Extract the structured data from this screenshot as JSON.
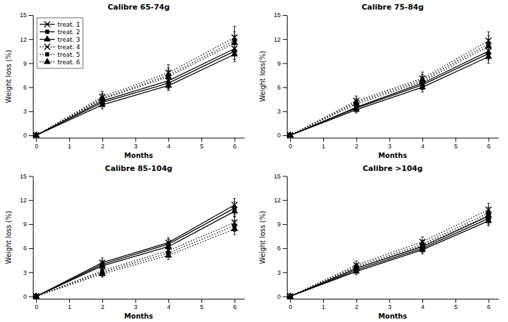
{
  "chart_data": [
    {
      "type": "line",
      "title": "Calibre 65-74g",
      "xlabel": "Months",
      "ylabel": "Weight loss (%)",
      "xlim": [
        -0.1,
        6.3
      ],
      "ylim": [
        -0.3,
        15.0
      ],
      "xticks": [
        0,
        1,
        2,
        3,
        4,
        5,
        6
      ],
      "yticks": [
        0,
        3,
        6,
        9,
        12,
        15
      ],
      "color": "#000000",
      "grid": false,
      "legend": "upper left",
      "series": [
        {
          "name": "treat. 1",
          "line_style": "solid",
          "marker": "x",
          "x": [
            0,
            2,
            4,
            6
          ],
          "values": [
            0,
            4.3,
            6.8,
            10.8
          ],
          "errors": [
            0,
            0.6,
            0.9,
            1.3
          ]
        },
        {
          "name": "treat. 2",
          "line_style": "solid",
          "marker": "square",
          "x": [
            0,
            2,
            4,
            6
          ],
          "values": [
            0,
            4.1,
            6.5,
            10.5
          ],
          "errors": [
            0,
            0.5,
            0.7,
            1.0
          ]
        },
        {
          "name": "treat. 3",
          "line_style": "solid",
          "marker": "triangle",
          "x": [
            0,
            2,
            4,
            6
          ],
          "values": [
            0,
            3.8,
            6.2,
            10.1
          ],
          "errors": [
            0,
            0.5,
            0.6,
            0.9
          ]
        },
        {
          "name": "treat. 4",
          "line_style": "dotted",
          "marker": "x",
          "x": [
            0,
            2,
            4,
            6
          ],
          "values": [
            0,
            4.8,
            7.8,
            12.2
          ],
          "errors": [
            0,
            0.7,
            1.0,
            1.4
          ]
        },
        {
          "name": "treat. 5",
          "line_style": "dotted",
          "marker": "square",
          "x": [
            0,
            2,
            4,
            6
          ],
          "values": [
            0,
            4.6,
            7.5,
            11.8
          ],
          "errors": [
            0,
            0.6,
            0.9,
            1.1
          ]
        },
        {
          "name": "treat. 6",
          "line_style": "dotted",
          "marker": "triangle",
          "x": [
            0,
            2,
            4,
            6
          ],
          "values": [
            0,
            4.5,
            7.3,
            11.5
          ],
          "errors": [
            0,
            0.6,
            0.8,
            1.0
          ]
        }
      ]
    },
    {
      "type": "line",
      "title": "Calibre 75-84g",
      "xlabel": "Months",
      "ylabel": "Weight loss(%)",
      "xlim": [
        -0.1,
        6.3
      ],
      "ylim": [
        -0.3,
        15.0
      ],
      "xticks": [
        0,
        1,
        2,
        3,
        4,
        5,
        6
      ],
      "yticks": [
        0,
        3,
        6,
        9,
        12,
        15
      ],
      "color": "#000000",
      "grid": false,
      "series": [
        {
          "name": "treat. 1",
          "line_style": "solid",
          "marker": "x",
          "x": [
            0,
            2,
            4,
            6
          ],
          "values": [
            0,
            3.5,
            6.5,
            10.5
          ],
          "errors": [
            0,
            0.4,
            0.7,
            0.9
          ]
        },
        {
          "name": "treat. 2",
          "line_style": "solid",
          "marker": "square",
          "x": [
            0,
            2,
            4,
            6
          ],
          "values": [
            0,
            3.4,
            6.3,
            10.2
          ],
          "errors": [
            0,
            0.4,
            0.6,
            0.8
          ]
        },
        {
          "name": "treat. 3",
          "line_style": "solid",
          "marker": "triangle",
          "x": [
            0,
            2,
            4,
            6
          ],
          "values": [
            0,
            3.2,
            6.0,
            9.8
          ],
          "errors": [
            0,
            0.4,
            0.6,
            0.8
          ]
        },
        {
          "name": "treat. 4",
          "line_style": "dotted",
          "marker": "x",
          "x": [
            0,
            2,
            4,
            6
          ],
          "values": [
            0,
            4.3,
            7.1,
            11.8
          ],
          "errors": [
            0,
            0.6,
            0.8,
            1.1
          ]
        },
        {
          "name": "treat. 5",
          "line_style": "dotted",
          "marker": "square",
          "x": [
            0,
            2,
            4,
            6
          ],
          "values": [
            0,
            4.1,
            6.9,
            11.4
          ],
          "errors": [
            0,
            0.5,
            0.7,
            1.0
          ]
        },
        {
          "name": "treat. 6",
          "line_style": "dotted",
          "marker": "triangle",
          "x": [
            0,
            2,
            4,
            6
          ],
          "values": [
            0,
            3.9,
            6.7,
            11.1
          ],
          "errors": [
            0,
            0.5,
            0.7,
            0.9
          ]
        }
      ]
    },
    {
      "type": "line",
      "title": "Calibre 85-104g",
      "xlabel": "Months",
      "ylabel": "Weight loss (%)",
      "xlim": [
        -0.1,
        6.3
      ],
      "ylim": [
        -0.3,
        15.0
      ],
      "xticks": [
        0,
        1,
        2,
        3,
        4,
        5,
        6
      ],
      "yticks": [
        0,
        3,
        6,
        9,
        12,
        15
      ],
      "color": "#000000",
      "grid": false,
      "series": [
        {
          "name": "treat. 1",
          "line_style": "solid",
          "marker": "x",
          "x": [
            0,
            2,
            4,
            6
          ],
          "values": [
            0,
            4.2,
            6.7,
            11.4
          ],
          "errors": [
            0,
            0.6,
            0.6,
            0.8
          ]
        },
        {
          "name": "treat. 2",
          "line_style": "solid",
          "marker": "square",
          "x": [
            0,
            2,
            4,
            6
          ],
          "values": [
            0,
            4.0,
            6.5,
            11.0
          ],
          "errors": [
            0,
            0.5,
            0.6,
            0.8
          ]
        },
        {
          "name": "treat. 3",
          "line_style": "solid",
          "marker": "triangle",
          "x": [
            0,
            2,
            4,
            6
          ],
          "values": [
            0,
            3.8,
            6.2,
            10.6
          ],
          "errors": [
            0,
            0.5,
            0.5,
            0.7
          ]
        },
        {
          "name": "treat. 4",
          "line_style": "dotted",
          "marker": "x",
          "x": [
            0,
            2,
            4,
            6
          ],
          "values": [
            0,
            3.2,
            5.7,
            9.2
          ],
          "errors": [
            0,
            0.5,
            0.6,
            0.8
          ]
        },
        {
          "name": "treat. 5",
          "line_style": "dotted",
          "marker": "square",
          "x": [
            0,
            2,
            4,
            6
          ],
          "values": [
            0,
            3.0,
            5.4,
            8.8
          ],
          "errors": [
            0,
            0.4,
            0.5,
            0.7
          ]
        },
        {
          "name": "treat. 6",
          "line_style": "dotted",
          "marker": "triangle",
          "x": [
            0,
            2,
            4,
            6
          ],
          "values": [
            0,
            2.8,
            5.1,
            8.4
          ],
          "errors": [
            0,
            0.4,
            0.5,
            0.7
          ]
        }
      ]
    },
    {
      "type": "line",
      "title": "Calibre >104g",
      "xlabel": "Months",
      "ylabel": "Weight loss (%)",
      "xlim": [
        -0.1,
        6.3
      ],
      "ylim": [
        -0.3,
        15.0
      ],
      "xticks": [
        0,
        1,
        2,
        3,
        4,
        5,
        6
      ],
      "yticks": [
        0,
        3,
        6,
        9,
        12,
        15
      ],
      "color": "#000000",
      "grid": false,
      "series": [
        {
          "name": "treat. 1",
          "line_style": "solid",
          "marker": "x",
          "x": [
            0,
            2,
            4,
            6
          ],
          "values": [
            0,
            3.5,
            6.2,
            10.0
          ],
          "errors": [
            0,
            0.4,
            0.5,
            0.7
          ]
        },
        {
          "name": "treat. 2",
          "line_style": "solid",
          "marker": "square",
          "x": [
            0,
            2,
            4,
            6
          ],
          "values": [
            0,
            3.3,
            6.0,
            9.7
          ],
          "errors": [
            0,
            0.4,
            0.5,
            0.7
          ]
        },
        {
          "name": "treat. 3",
          "line_style": "solid",
          "marker": "triangle",
          "x": [
            0,
            2,
            4,
            6
          ],
          "values": [
            0,
            3.1,
            5.8,
            9.4
          ],
          "errors": [
            0,
            0.4,
            0.5,
            0.6
          ]
        },
        {
          "name": "treat. 4",
          "line_style": "dotted",
          "marker": "x",
          "x": [
            0,
            2,
            4,
            6
          ],
          "values": [
            0,
            3.9,
            6.8,
            10.8
          ],
          "errors": [
            0,
            0.5,
            0.6,
            0.8
          ]
        },
        {
          "name": "treat. 5",
          "line_style": "dotted",
          "marker": "square",
          "x": [
            0,
            2,
            4,
            6
          ],
          "values": [
            0,
            3.7,
            6.5,
            10.4
          ],
          "errors": [
            0,
            0.4,
            0.5,
            0.7
          ]
        },
        {
          "name": "treat. 6",
          "line_style": "dotted",
          "marker": "triangle",
          "x": [
            0,
            2,
            4,
            6
          ],
          "values": [
            0,
            3.5,
            6.3,
            10.1
          ],
          "errors": [
            0,
            0.4,
            0.5,
            0.7
          ]
        }
      ]
    }
  ]
}
